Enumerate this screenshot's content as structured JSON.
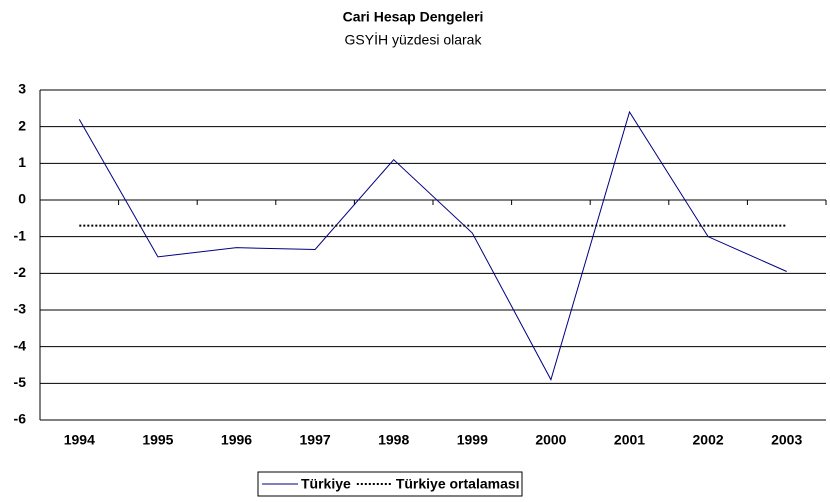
{
  "chart_data": {
    "type": "line",
    "title": "Cari Hesap Dengeleri",
    "subtitle": "GSYİH yüzdesi olarak",
    "categories": [
      "1994",
      "1995",
      "1996",
      "1997",
      "1998",
      "1999",
      "2000",
      "2001",
      "2002",
      "2003"
    ],
    "series": [
      {
        "name": "Türkiye",
        "color": "#000080",
        "style": "solid",
        "values": [
          2.2,
          -1.55,
          -1.3,
          -1.35,
          1.1,
          -0.9,
          -4.9,
          2.4,
          -1.0,
          -1.95
        ]
      },
      {
        "name": "Türkiye ortalaması",
        "color": "#000000",
        "style": "dotted",
        "values": [
          -0.7,
          -0.7,
          -0.7,
          -0.7,
          -0.7,
          -0.7,
          -0.7,
          -0.7,
          -0.7,
          -0.7
        ]
      }
    ],
    "ylim": [
      -6,
      3
    ],
    "yticks": [
      -6,
      -5,
      -4,
      -3,
      -2,
      -1,
      0,
      1,
      2,
      3
    ],
    "grid": true,
    "legend": "bottom"
  }
}
